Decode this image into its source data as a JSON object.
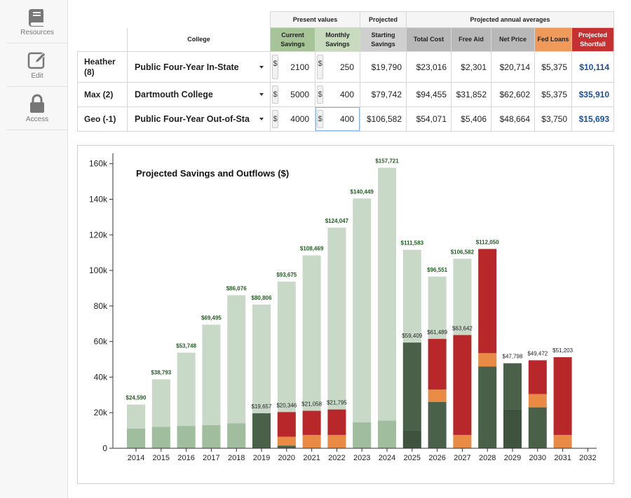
{
  "sidebar": {
    "items": [
      {
        "label": "Resources",
        "icon": "book-icon"
      },
      {
        "label": "Edit",
        "icon": "pencil-icon"
      },
      {
        "label": "Access",
        "icon": "lock-icon"
      }
    ]
  },
  "table": {
    "group_headers": {
      "present": "Present values",
      "projected": "Projected",
      "annual": "Projected annual averages"
    },
    "college_header": "College",
    "columns": {
      "current_savings": "Current Savings",
      "monthly_savings": "Monthly Savings",
      "starting_savings": "Starting Savings",
      "total_cost": "Total Cost",
      "free_aid": "Free Aid",
      "net_price": "Net Price",
      "fed_loans": "Fed Loans",
      "shortfall": "Projected Shortfall"
    },
    "currency_symbol": "$",
    "rows": [
      {
        "person": "Heather (8)",
        "college": "Public Four-Year In-State",
        "current": "2100",
        "monthly": "250",
        "starting": "$19,790",
        "total": "$23,016",
        "aid": "$2,301",
        "net": "$20,714",
        "loans": "$5,375",
        "shortfall": "$10,114"
      },
      {
        "person": "Max (2)",
        "college": "Dartmouth College",
        "current": "5000",
        "monthly": "400",
        "starting": "$79,742",
        "total": "$94,455",
        "aid": "$31,852",
        "net": "$62,602",
        "loans": "$5,375",
        "shortfall": "$35,910"
      },
      {
        "person": "Geo (-1)",
        "college": "Public Four-Year Out-of-Sta",
        "current": "4000",
        "monthly": "400",
        "starting": "$106,582",
        "total": "$54,071",
        "aid": "$5,406",
        "net": "$48,664",
        "loans": "$3,750",
        "shortfall": "$15,693"
      }
    ]
  },
  "chart_data": {
    "type": "bar",
    "title": "Projected Savings and Outflows ($)",
    "xlabel": "",
    "ylabel": "",
    "ylim": [
      0,
      165000
    ],
    "yticks": [
      0,
      20000,
      40000,
      60000,
      80000,
      100000,
      120000,
      140000,
      160000
    ],
    "ytick_labels": [
      "0",
      "20k",
      "40k",
      "60k",
      "80k",
      "100k",
      "120k",
      "140k",
      "160k"
    ],
    "categories": [
      "2014",
      "2015",
      "2016",
      "2017",
      "2018",
      "2019",
      "2020",
      "2021",
      "2022",
      "2023",
      "2024",
      "2025",
      "2026",
      "2027",
      "2028",
      "2029",
      "2030",
      "2031",
      "2032"
    ],
    "colors": {
      "savings_total": "#c8d9c8",
      "savings_base": "#a0bd9e",
      "dark_savings": "#4a6049",
      "dark_savings_2": "#3e523d",
      "fed_loans": "#e98a45",
      "shortfall": "#b8272a",
      "top_label": "#1f5e1f",
      "outflow_label": "#222222"
    },
    "savings_total": [
      24590,
      38793,
      53748,
      69495,
      86076,
      80806,
      93675,
      108469,
      124047,
      140449,
      157721,
      111583,
      96551,
      106582,
      112050,
      null,
      null,
      null,
      null
    ],
    "savings_total_labels": [
      "$24,590",
      "$38,793",
      "$53,748",
      "$69,495",
      "$86,076",
      "$80,806",
      "$93,675",
      "$108,469",
      "$124,047",
      "$140,449",
      "$157,721",
      "$111,583",
      "$96,551",
      "$106,582",
      "$112,050",
      "",
      "",
      "",
      ""
    ],
    "savings_base": [
      11000,
      12000,
      12500,
      13000,
      14000,
      12000,
      0,
      0,
      0,
      14500,
      15500,
      0,
      0,
      0,
      0,
      0,
      0,
      0,
      0
    ],
    "outflow_total": [
      null,
      null,
      null,
      null,
      null,
      19657,
      20346,
      21058,
      21795,
      null,
      null,
      59409,
      61489,
      63642,
      null,
      47798,
      49472,
      51203,
      null
    ],
    "outflow_labels": [
      "",
      "",
      "",
      "",
      "",
      "$19,657",
      "$20,346",
      "$21,058",
      "$21,795",
      "",
      "",
      "$59,409",
      "$61,489",
      "$63,642",
      "",
      "$47,798",
      "$49,472",
      "$51,203",
      ""
    ],
    "outflow_segments": [
      [],
      [],
      [],
      [],
      [],
      [
        {
          "kind": "dark_savings",
          "v": 19657
        }
      ],
      [
        {
          "kind": "dark_savings",
          "v": 1500
        },
        {
          "kind": "fed_loans",
          "v": 5000
        },
        {
          "kind": "shortfall",
          "v": 13846
        }
      ],
      [
        {
          "kind": "fed_loans",
          "v": 7500
        },
        {
          "kind": "shortfall",
          "v": 13558
        }
      ],
      [
        {
          "kind": "fed_loans",
          "v": 7500
        },
        {
          "kind": "shortfall",
          "v": 14295
        }
      ],
      [],
      [],
      [
        {
          "kind": "dark_savings_2",
          "v": 10000
        },
        {
          "kind": "dark_savings",
          "v": 49409
        }
      ],
      [
        {
          "kind": "dark_savings",
          "v": 26000
        },
        {
          "kind": "fed_loans",
          "v": 7000
        },
        {
          "kind": "shortfall",
          "v": 28489
        }
      ],
      [
        {
          "kind": "fed_loans",
          "v": 7500
        },
        {
          "kind": "shortfall",
          "v": 56142
        }
      ],
      [
        {
          "kind": "dark_savings",
          "v": 46000
        },
        {
          "kind": "fed_loans",
          "v": 7500
        },
        {
          "kind": "shortfall",
          "v": 58550
        }
      ],
      [
        {
          "kind": "dark_savings_2",
          "v": 22000
        },
        {
          "kind": "dark_savings",
          "v": 25798
        }
      ],
      [
        {
          "kind": "dark_savings",
          "v": 23000
        },
        {
          "kind": "fed_loans",
          "v": 7500
        },
        {
          "kind": "shortfall",
          "v": 18972
        }
      ],
      [
        {
          "kind": "fed_loans",
          "v": 7500
        },
        {
          "kind": "shortfall",
          "v": 43703
        }
      ],
      []
    ]
  }
}
